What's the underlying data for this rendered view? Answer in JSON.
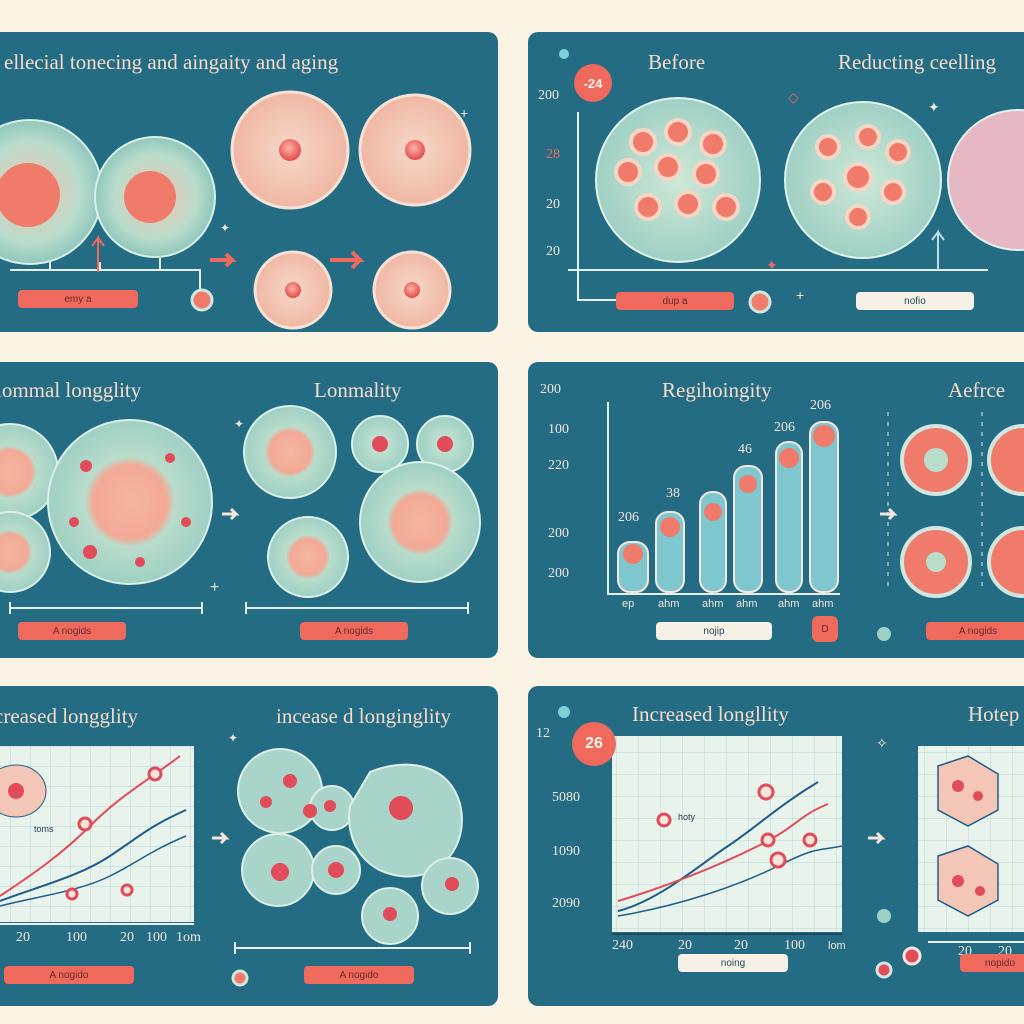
{
  "panels": {
    "p1": {
      "title": "ellecial  tonecing and aingaity and aging",
      "pill": "emy a"
    },
    "p2": {
      "title_left": "Before",
      "title_right": "Reducting ceelling",
      "badge": "-24",
      "axis": [
        "200",
        "28",
        "20",
        "20"
      ],
      "pill_left": "dup a",
      "pill_right": "nofio"
    },
    "p3": {
      "title_left": "lommal longglity",
      "title_right": "Lonmality",
      "pill_left": "A nogids",
      "pill_right": "A nogids"
    },
    "p4": {
      "title_left": "Regihoingity",
      "title_right": "Aefrce",
      "axis": [
        "200",
        "100",
        "220",
        "200",
        "200"
      ],
      "bar_labels": [
        "206",
        "38",
        "46",
        "206",
        "206"
      ],
      "x_labels": [
        "ep",
        "ahm",
        "ahm",
        "ahm",
        "ahm",
        "ahm"
      ],
      "pill_left": "nojip",
      "pill_small": "D",
      "pill_right": "A nogids"
    },
    "p5": {
      "title_left": "creased longglity",
      "title_right": "incease d longinglity",
      "small_label": "toms",
      "x_labels": [
        "20",
        "100",
        "20",
        "100",
        "1om"
      ],
      "pill_left": "A nogido",
      "pill_right": "A nogido"
    },
    "p6": {
      "title_left": "Increased longllity",
      "title_right": "Hotep",
      "badge": "26",
      "axis": [
        "12",
        "5080",
        "1090",
        "2090"
      ],
      "x_labels": [
        "240",
        "20",
        "20",
        "100",
        "lom"
      ],
      "x_labels_right": [
        "20",
        "20"
      ],
      "small_label": "hoty",
      "pill_left": "noing",
      "pill_right": "nopido"
    }
  },
  "colors": {
    "panel": "#246b84",
    "accent": "#ef6a5d",
    "cell": "#b6dccb",
    "background": "#fbf3e4"
  }
}
